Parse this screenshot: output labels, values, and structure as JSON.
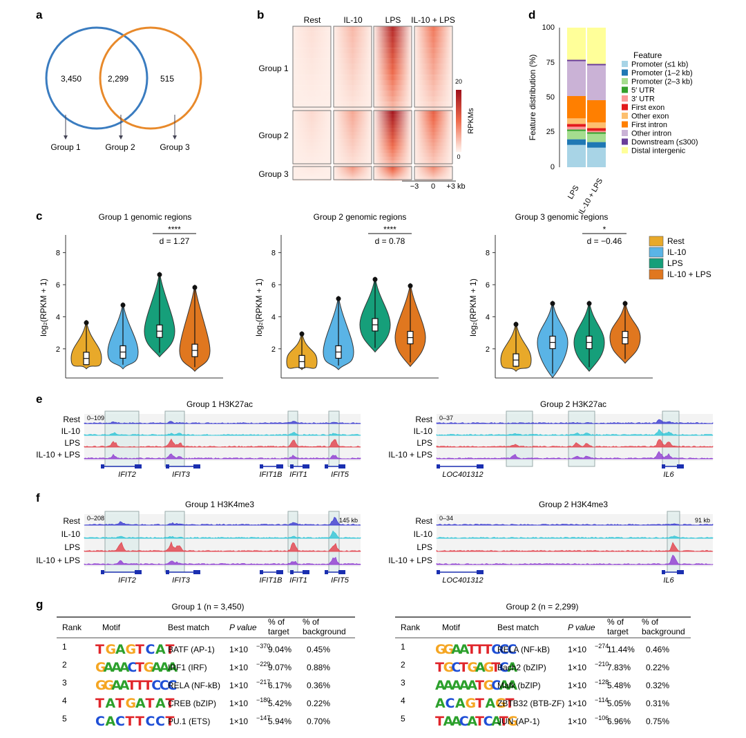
{
  "panels": {
    "a": "a",
    "b": "b",
    "c": "c",
    "d": "d",
    "e": "e",
    "f": "f",
    "g": "g"
  },
  "venn": {
    "counts": [
      "3,450",
      "2,299",
      "515"
    ],
    "groups": [
      "Group 1",
      "Group 2",
      "Group 3"
    ],
    "colors": {
      "left": "#3a7cc0",
      "right": "#e8892a"
    }
  },
  "heatmap": {
    "conditions": [
      "Rest",
      "IL-10",
      "LPS",
      "IL-10 + LPS"
    ],
    "groups": [
      "Group 1",
      "Group 2",
      "Group 3"
    ],
    "intensity": [
      [
        0.08,
        0.22,
        0.85,
        0.45
      ],
      [
        0.1,
        0.28,
        0.95,
        0.55
      ],
      [
        0.05,
        0.35,
        0.6,
        0.4
      ]
    ],
    "xticks": [
      "−3",
      "0",
      "+3 kb"
    ],
    "scale": {
      "label": "RPKMs",
      "max": "20",
      "min": "0"
    }
  },
  "features": {
    "ylabel": "Feature distribution (%)",
    "yticks": [
      "0",
      "25",
      "50",
      "75",
      "100"
    ],
    "bars": [
      "LPS",
      "IL-10 + LPS"
    ],
    "legend_title": "Feature",
    "items": [
      {
        "name": "Promoter  (≤1 kb)",
        "color": "#a8d4e6"
      },
      {
        "name": "Promoter  (1–2 kb)",
        "color": "#1f78b4"
      },
      {
        "name": "Promoter  (2–3 kb)",
        "color": "#a5dd8f"
      },
      {
        "name": "5′ UTR",
        "color": "#33a02c"
      },
      {
        "name": "3′ UTR",
        "color": "#fb9a99"
      },
      {
        "name": "First exon",
        "color": "#e31a1c"
      },
      {
        "name": "Other exon",
        "color": "#fdbf6f"
      },
      {
        "name": "First intron",
        "color": "#ff7f00"
      },
      {
        "name": "Other intron",
        "color": "#cab2d6"
      },
      {
        "name": "Downstream (≤300)",
        "color": "#6a3d9a"
      },
      {
        "name": "Distal intergenic",
        "color": "#ffff99"
      }
    ],
    "values": [
      [
        16,
        4,
        6,
        1,
        2,
        2,
        4,
        16,
        25,
        1,
        23
      ],
      [
        14,
        4,
        6,
        1,
        1,
        2,
        4,
        16,
        25,
        1,
        26
      ]
    ]
  },
  "violins": {
    "ylabel": "log₂(RPKM + 1)",
    "yticks": [
      "2",
      "4",
      "6",
      "8"
    ],
    "legend": [
      "Rest",
      "IL-10",
      "LPS",
      "IL-10 + LPS"
    ],
    "colors": [
      "#e8a92a",
      "#5ab4e6",
      "#169f7a",
      "#e0771f"
    ],
    "panels": [
      {
        "title": "Group 1 genomic regions",
        "sig": "****",
        "d": "d = 1.27",
        "medians": [
          1.4,
          1.8,
          3.1,
          1.9
        ]
      },
      {
        "title": "Group 2 genomic regions",
        "sig": "****",
        "d": "d = 0.78",
        "medians": [
          1.2,
          1.8,
          3.5,
          2.7
        ]
      },
      {
        "title": "Group 3 genomic regions",
        "sig": "*",
        "d": "d = −0.46",
        "medians": [
          1.3,
          2.4,
          2.4,
          2.7
        ]
      }
    ]
  },
  "tracks": {
    "samples": [
      "Rest",
      "IL-10",
      "LPS",
      "IL-10 + LPS"
    ],
    "colors": [
      "#3b3bd0",
      "#2ec4d6",
      "#e2404a",
      "#8e3bd1"
    ],
    "e1": {
      "title": "Group 1 H3K27ac",
      "range": "0–109",
      "genes": [
        "IFIT2",
        "IFIT3",
        "IFIT1B",
        "IFIT1",
        "IFIT5"
      ]
    },
    "e2": {
      "title": "Group 2 H3K27ac",
      "range": "0–37",
      "genes": [
        "LOC401312",
        "IL6"
      ]
    },
    "f1": {
      "title": "Group 1 H3K4me3",
      "range": "0–208",
      "scale": "145 kb",
      "genes": [
        "IFIT2",
        "IFIT3",
        "IFIT1B",
        "IFIT1",
        "IFIT5"
      ]
    },
    "f2": {
      "title": "Group 2 H3K4me3",
      "range": "0–34",
      "scale": "91 kb",
      "genes": [
        "LOC401312",
        "IL6"
      ]
    }
  },
  "motifs": {
    "headers": [
      "Rank",
      "Motif",
      "Best match",
      "P value",
      "% of",
      "target",
      "% of",
      "background"
    ],
    "g1": {
      "title": "Group 1 (n = 3,450)",
      "rows": [
        {
          "rank": "1",
          "motif": "TGAGTCAT",
          "match": "BATF (AP-1)",
          "p": "1×10",
          "exp": "−370",
          "target": "9.04%",
          "bg": "0.45%"
        },
        {
          "rank": "2",
          "motif": "GAAACTGAAA",
          "match": "IRF1 (IRF)",
          "p": "1×10",
          "exp": "−229",
          "target": "9.07%",
          "bg": "0.88%"
        },
        {
          "rank": "3",
          "motif": "GGAATTTCCC",
          "match": "RELA (NF-kB)",
          "p": "1×10",
          "exp": "−217",
          "target": "6.17%",
          "bg": "0.36%"
        },
        {
          "rank": "4",
          "motif": "TATGATAT",
          "match": "CREB (bZIP)",
          "p": "1×10",
          "exp": "−180",
          "target": "5.42%",
          "bg": "0.22%"
        },
        {
          "rank": "5",
          "motif": "CACTTCCT",
          "match": "PU.1 (ETS)",
          "p": "1×10",
          "exp": "−147",
          "target": "5.94%",
          "bg": "0.70%"
        }
      ]
    },
    "g2": {
      "title": "Group 2 (n = 2,299)",
      "rows": [
        {
          "rank": "1",
          "motif": "GGAATTTCCC",
          "match": "RELA (NF-kB)",
          "p": "1×10",
          "exp": "−274",
          "target": "11.44%",
          "bg": "0.46%"
        },
        {
          "rank": "2",
          "motif": "TGCTGAGTCA",
          "match": "Bach2 (bZIP)",
          "p": "1×10",
          "exp": "−210",
          "target": "7.83%",
          "bg": "0.22%"
        },
        {
          "rank": "3",
          "motif": "AAAAATGCAA",
          "match": "Mafk (bZIP)",
          "p": "1×10",
          "exp": "−128",
          "target": "5.48%",
          "bg": "0.32%"
        },
        {
          "rank": "4",
          "motif": "ACAGTAGT",
          "match": "ZBTB32 (BTB-ZF)",
          "p": "1×10",
          "exp": "−114",
          "target": "5.05%",
          "bg": "0.31%"
        },
        {
          "rank": "5",
          "motif": "TAACATCATG",
          "match": "JUN (AP-1)",
          "p": "1×10",
          "exp": "−106",
          "target": "6.96%",
          "bg": "0.75%"
        }
      ]
    }
  }
}
